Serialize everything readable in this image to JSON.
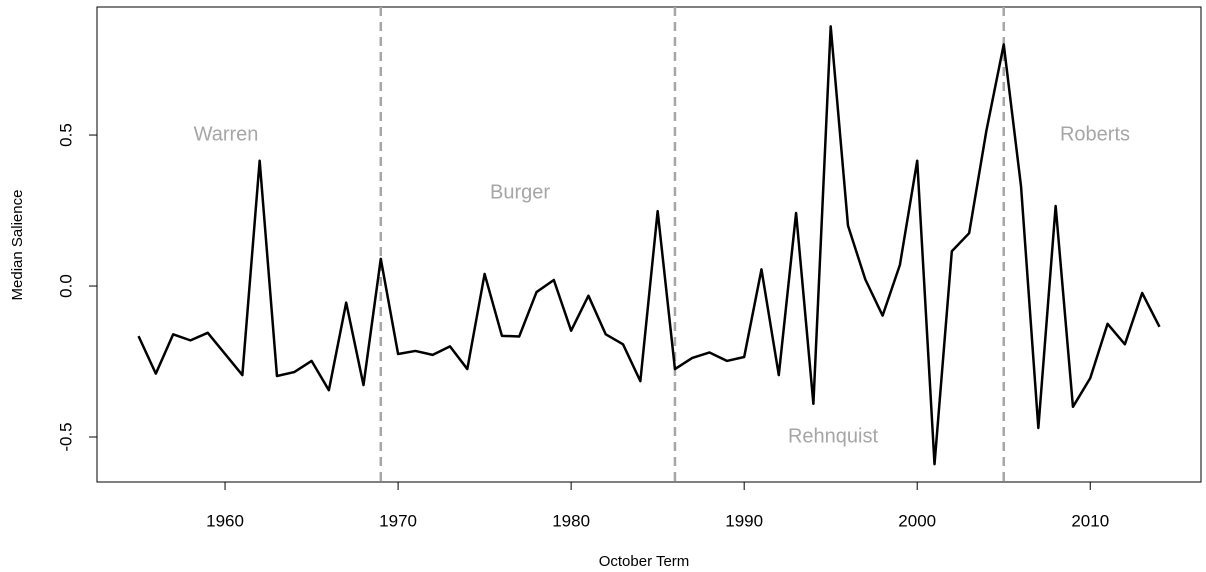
{
  "chart_data": {
    "type": "line",
    "x_label": "October Term",
    "y_label": "Median Salience",
    "x": [
      1955,
      1956,
      1957,
      1958,
      1959,
      1960,
      1961,
      1962,
      1963,
      1964,
      1965,
      1966,
      1967,
      1968,
      1969,
      1970,
      1971,
      1972,
      1973,
      1974,
      1975,
      1976,
      1977,
      1978,
      1979,
      1980,
      1981,
      1982,
      1983,
      1984,
      1985,
      1986,
      1987,
      1988,
      1989,
      1990,
      1991,
      1992,
      1993,
      1994,
      1995,
      1996,
      1997,
      1998,
      1999,
      2000,
      2001,
      2002,
      2003,
      2004,
      2005,
      2006,
      2007,
      2008,
      2009,
      2010,
      2011,
      2012,
      2013,
      2014
    ],
    "values": [
      -0.166,
      -0.29,
      -0.16,
      -0.18,
      -0.155,
      -0.225,
      -0.295,
      0.415,
      -0.298,
      -0.285,
      -0.248,
      -0.345,
      -0.055,
      -0.328,
      0.09,
      -0.225,
      -0.215,
      -0.228,
      -0.2,
      -0.275,
      0.04,
      -0.165,
      -0.167,
      -0.02,
      0.02,
      -0.148,
      -0.032,
      -0.16,
      -0.193,
      -0.315,
      0.248,
      -0.275,
      -0.238,
      -0.22,
      -0.248,
      -0.235,
      0.055,
      -0.295,
      0.242,
      -0.39,
      0.86,
      0.2,
      0.022,
      -0.098,
      0.07,
      0.415,
      -0.59,
      0.115,
      0.175,
      0.515,
      0.8,
      0.33,
      -0.47,
      0.265,
      -0.4,
      -0.305,
      -0.125,
      -0.193,
      -0.023,
      -0.135
    ],
    "color": "#000000",
    "xlim": [
      1952.6,
      2016.4
    ],
    "ylim": [
      -0.649,
      0.924
    ],
    "xticks": [
      1960,
      1970,
      1980,
      1990,
      2000,
      2010
    ],
    "yticks": [
      -0.5,
      {
        "value": 0,
        "label": "0.0"
      },
      0.5
    ],
    "vlines": [
      1969,
      1986,
      2005
    ],
    "vline_color": "#a6a6a6",
    "annotations": [
      "Warren",
      "Burger",
      "Rehnquist",
      "Roberts"
    ]
  }
}
